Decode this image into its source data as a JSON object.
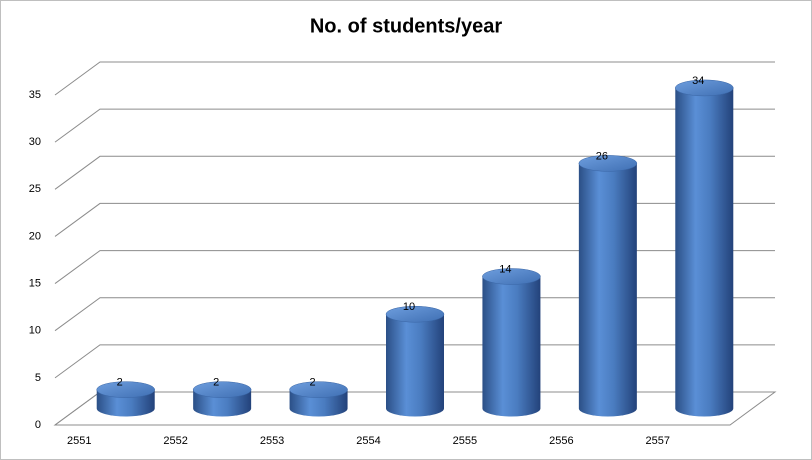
{
  "chart_data": {
    "type": "bar3d-cylinder",
    "title": "No. of students/year",
    "categories": [
      "2551",
      "2552",
      "2553",
      "2554",
      "2555",
      "2556",
      "2557"
    ],
    "values": [
      2,
      2,
      2,
      10,
      14,
      26,
      34
    ],
    "color": "#4f81bd",
    "ylim": [
      0,
      35
    ],
    "yticks": [
      0,
      5,
      10,
      15,
      20,
      25,
      30,
      35
    ],
    "grid": true
  }
}
